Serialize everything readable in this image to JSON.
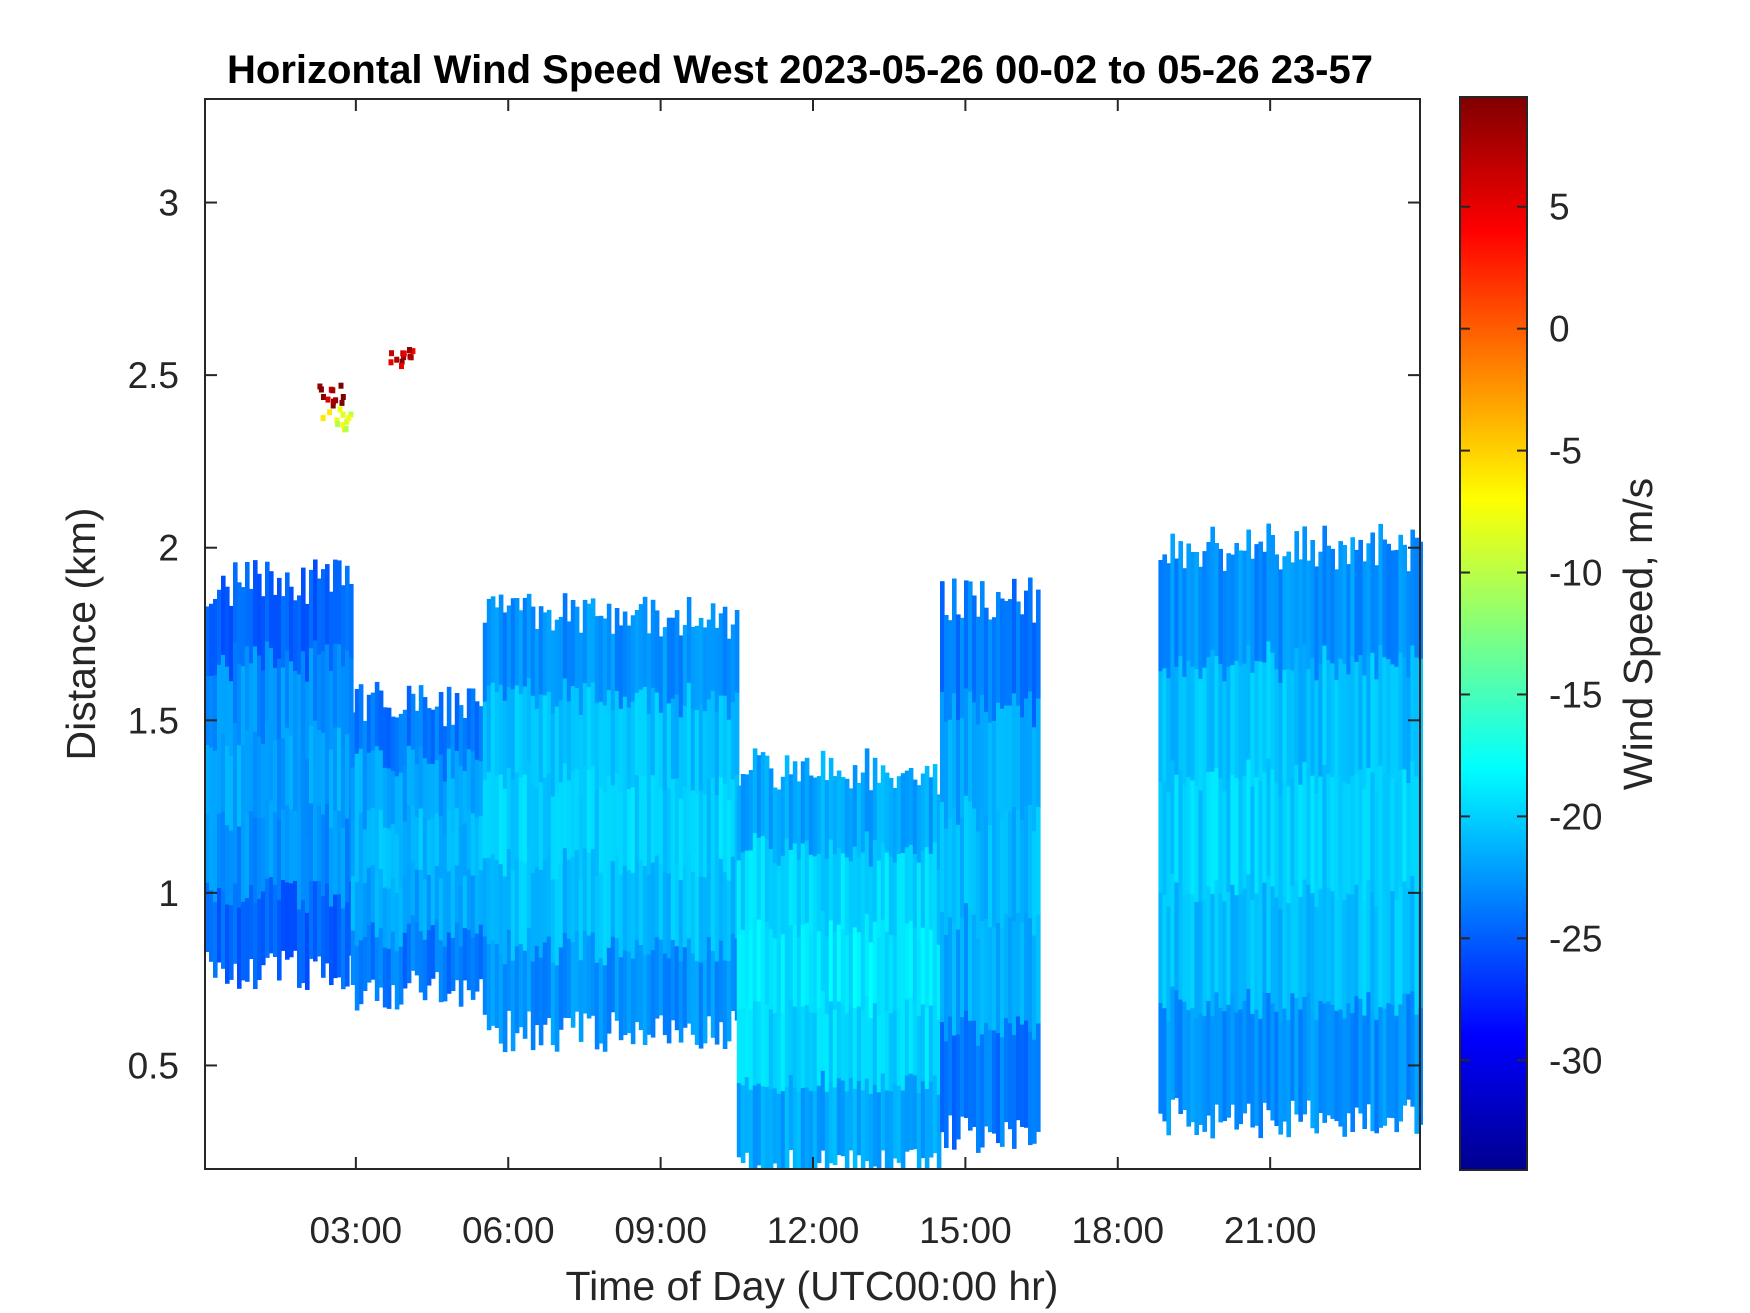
{
  "chart_data": {
    "type": "heatmap",
    "title": "Horizontal Wind Speed West 2023-05-26 00-02 to 05-26 23-57",
    "xlabel": "Time of Day (UTC00:00 hr)",
    "ylabel": "Distance (km)",
    "colorbar_label": "Wind Speed, m/s",
    "x_ticks": [
      {
        "value": 3,
        "label": "03:00"
      },
      {
        "value": 6,
        "label": "06:00"
      },
      {
        "value": 9,
        "label": "09:00"
      },
      {
        "value": 12,
        "label": "12:00"
      },
      {
        "value": 15,
        "label": "15:00"
      },
      {
        "value": 18,
        "label": "18:00"
      },
      {
        "value": 21,
        "label": "21:00"
      }
    ],
    "y_ticks": [
      {
        "value": 0.5,
        "label": "0.5"
      },
      {
        "value": 1,
        "label": "1"
      },
      {
        "value": 1.5,
        "label": "1.5"
      },
      {
        "value": 2,
        "label": "2"
      },
      {
        "value": 2.5,
        "label": "2.5"
      },
      {
        "value": 3,
        "label": "3"
      }
    ],
    "colorbar_ticks": [
      {
        "value": 5,
        "label": "5"
      },
      {
        "value": 0,
        "label": "0"
      },
      {
        "value": -5,
        "label": "-5"
      },
      {
        "value": -10,
        "label": "-10"
      },
      {
        "value": -15,
        "label": "-15"
      },
      {
        "value": -20,
        "label": "-20"
      },
      {
        "value": -25,
        "label": "-25"
      },
      {
        "value": -30,
        "label": "-30"
      }
    ],
    "xlim": [
      0.03,
      23.95
    ],
    "ylim": [
      0.2,
      3.3
    ],
    "clim": [
      -34.5,
      9.5
    ],
    "colormap": "jet",
    "grid": false,
    "regions": [
      {
        "t0": 0.03,
        "t1": 2.9,
        "z_low": 0.78,
        "z_high": 1.9,
        "speed": -24
      },
      {
        "t0": 2.9,
        "t1": 5.5,
        "z_low": 0.72,
        "z_high": 1.55,
        "speed": -23
      },
      {
        "t0": 5.5,
        "t1": 10.5,
        "z_low": 0.6,
        "z_high": 1.8,
        "speed": -22
      },
      {
        "t0": 10.5,
        "t1": 14.5,
        "z_low": 0.2,
        "z_high": 1.35,
        "speed": -21
      },
      {
        "t0": 14.5,
        "t1": 16.45,
        "z_low": 0.3,
        "z_high": 1.85,
        "speed": -23
      },
      {
        "t0": 18.8,
        "t1": 23.95,
        "z_low": 0.35,
        "z_high": 2.0,
        "speed": -22
      }
    ],
    "events": [
      {
        "t": 2.5,
        "z": 2.45,
        "speed": 8
      },
      {
        "t": 2.6,
        "z": 2.38,
        "speed": -8
      },
      {
        "t": 3.9,
        "z": 2.55,
        "speed": 7
      }
    ]
  }
}
